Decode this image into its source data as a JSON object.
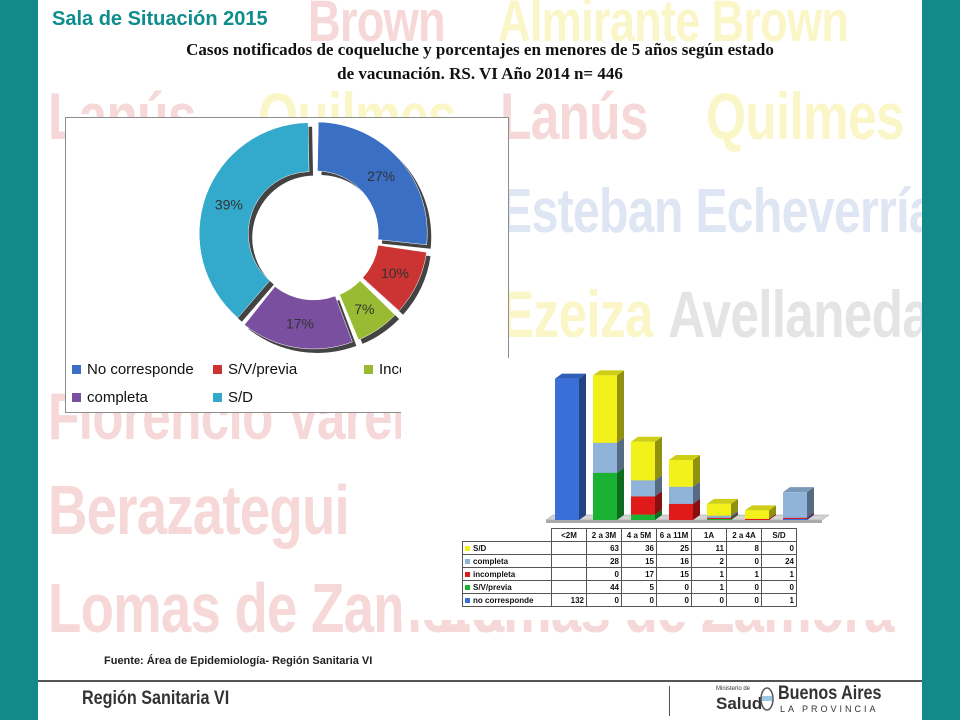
{
  "slide": {
    "title": "Sala de Situación 2015",
    "subtitle_line1": "Casos notificados de coqueluche  y porcentajes en menores de 5 años según estado",
    "subtitle_line2": "de vacunación.  RS. VI Año 2014 n= 446",
    "source": "Fuente: Área de Epidemiología- Región Sanitaria VI",
    "footer_left": "Región Sanitaria VI",
    "footer_right_small": "Ministerio de",
    "footer_right_salud": "Salud",
    "footer_right_main": "Buenos Aires",
    "footer_right_sub": "LA PROVINCIA"
  },
  "watermarks": [
    "Brown",
    "Almirante Brown",
    "Lanús",
    "Quilmes",
    "Lanús",
    "Quilmes",
    "Esteban Echeverría",
    "Ezeiza",
    "Avellaneda",
    "Florencio Varela",
    "Berazategui",
    "Lomas de Zamora",
    "Lomas de Zamora"
  ],
  "colors": {
    "no_corresponde": "#3a6fc4",
    "sv_previa": "#cc3333",
    "incompleta": "#99bb33",
    "completa": "#7a4fa0",
    "sd": "#33a9cc",
    "teal": "#0f8c8c"
  },
  "chart_data": [
    {
      "type": "pie",
      "title": "",
      "labels": [
        "No corresponde",
        "S/V/previa",
        "Incompleta",
        "completa",
        "S/D"
      ],
      "values": [
        27,
        10,
        7,
        17,
        39
      ],
      "value_labels": [
        "27%",
        "10%",
        "7%",
        "17%",
        "39%"
      ],
      "legend_position": "bottom"
    },
    {
      "type": "bar",
      "stacked": true,
      "title": "",
      "categories": [
        "<2M",
        "2 a 3M",
        "4 a 5M",
        "6 a 11M",
        "1A",
        "2 a 4A",
        "S/D"
      ],
      "series": [
        {
          "name": "no corresponde",
          "color": "#3a6fd9",
          "values": [
            132,
            0,
            0,
            0,
            0,
            0,
            1
          ]
        },
        {
          "name": "S/V/previa",
          "color": "#19b233",
          "values": [
            null,
            44,
            5,
            0,
            1,
            0,
            0
          ]
        },
        {
          "name": "incompleta",
          "color": "#e01919",
          "values": [
            null,
            0,
            17,
            15,
            1,
            1,
            1
          ]
        },
        {
          "name": "completa",
          "color": "#8fb3d9",
          "values": [
            null,
            28,
            15,
            16,
            2,
            0,
            24
          ]
        },
        {
          "name": "S/D",
          "color": "#f2f21a",
          "values": [
            null,
            63,
            36,
            25,
            11,
            8,
            0
          ]
        }
      ],
      "table_rows_top_to_bottom": [
        "S/D",
        "completa",
        "incompleta",
        "S/V/previa",
        "no corresponde"
      ],
      "grid": false,
      "legend_position": "table"
    }
  ]
}
